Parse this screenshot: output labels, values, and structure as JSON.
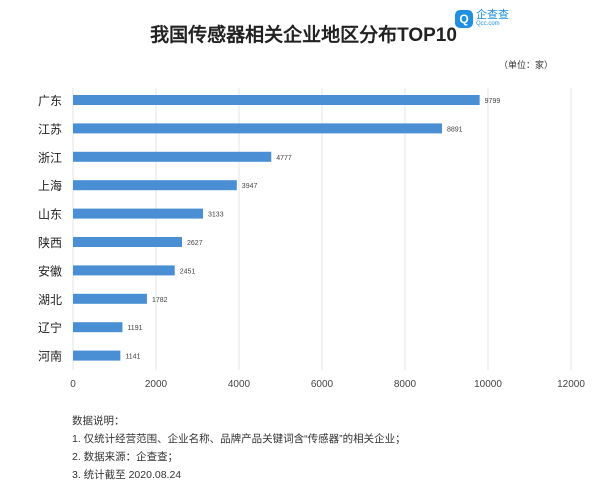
{
  "chart_data": {
    "type": "bar",
    "orientation": "horizontal",
    "title": "我国传感器相关企业地区分布TOP10",
    "unit": "（单位：家）",
    "categories": [
      "广东",
      "江苏",
      "浙江",
      "上海",
      "山东",
      "陕西",
      "安徽",
      "湖北",
      "辽宁",
      "河南"
    ],
    "values": [
      9799,
      8891,
      4777,
      3947,
      3133,
      2627,
      2451,
      1782,
      1191,
      1141
    ],
    "xlim": [
      0,
      12000
    ],
    "xticks": [
      0,
      2000,
      4000,
      6000,
      8000,
      10000,
      12000
    ],
    "grid": true,
    "bar_color": "#4a8fd4",
    "data_labels": true
  },
  "logo": {
    "name": "企查查",
    "domain": "Qcc.com"
  },
  "notes": {
    "heading": "数据说明：",
    "items": [
      "1. 仅统计经营范围、企业名称、品牌产品关键词含“传感器”的相关企业；",
      "2. 数据来源：企查查；",
      "3. 统计截至 2020.08.24"
    ]
  }
}
